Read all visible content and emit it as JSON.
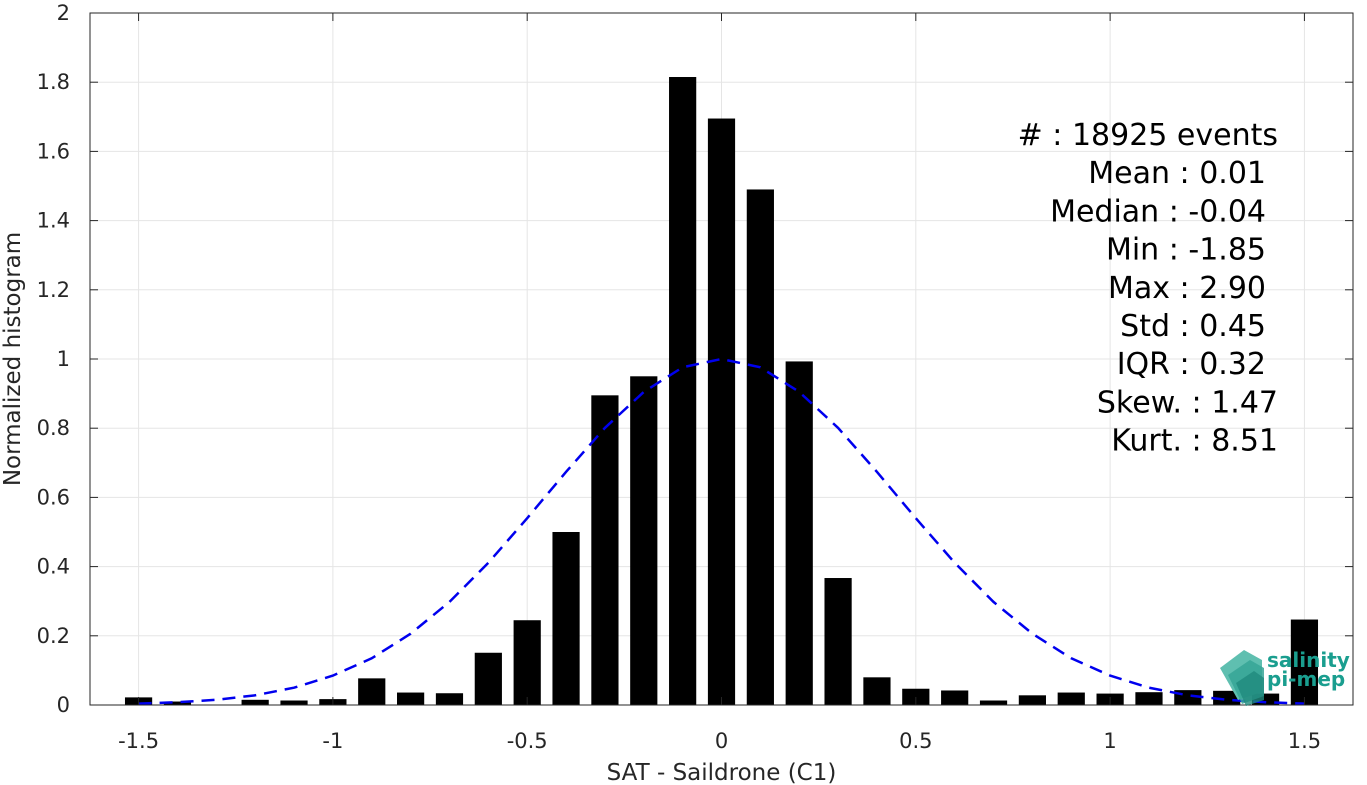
{
  "chart_data": {
    "type": "bar",
    "xlabel": "SAT - Saildrone (C1)",
    "ylabel": "Normalized histogram",
    "xlim": [
      -1.625,
      1.625
    ],
    "ylim": [
      0,
      2
    ],
    "xticks": [
      -1.5,
      -1,
      -0.5,
      0,
      0.5,
      1,
      1.5
    ],
    "xtick_labels": [
      "-1.5",
      "-1",
      "-0.5",
      "0",
      "0.5",
      "1",
      "1.5"
    ],
    "yticks": [
      0,
      0.2,
      0.4,
      0.6,
      0.8,
      1,
      1.2,
      1.4,
      1.6,
      1.8,
      2
    ],
    "ytick_labels": [
      "0",
      "0.2",
      "0.4",
      "0.6",
      "0.8",
      "1",
      "1.2",
      "1.4",
      "1.6",
      "1.8",
      "2"
    ],
    "grid": true,
    "bar_color": "#000000",
    "curve_color": "#0000ee",
    "series": [
      {
        "type": "bar",
        "x": [
          -1.5,
          -1.4,
          -1.3,
          -1.2,
          -1.1,
          -1.0,
          -0.9,
          -0.8,
          -0.7,
          -0.6,
          -0.5,
          -0.4,
          -0.3,
          -0.2,
          -0.1,
          0.0,
          0.1,
          0.2,
          0.3,
          0.4,
          0.5,
          0.6,
          0.7,
          0.8,
          0.9,
          1.0,
          1.1,
          1.2,
          1.3,
          1.4,
          1.5
        ],
        "values": [
          0.022,
          0.01,
          0.0,
          0.015,
          0.013,
          0.017,
          0.077,
          0.036,
          0.034,
          0.151,
          0.245,
          0.5,
          0.895,
          0.95,
          1.815,
          1.695,
          1.49,
          0.993,
          0.367,
          0.08,
          0.047,
          0.042,
          0.013,
          0.028,
          0.036,
          0.033,
          0.037,
          0.043,
          0.041,
          0.033,
          0.247
        ]
      },
      {
        "type": "line",
        "style": "dashed",
        "x": [
          -1.5,
          -1.4,
          -1.3,
          -1.2,
          -1.1,
          -1.0,
          -0.9,
          -0.8,
          -0.7,
          -0.6,
          -0.5,
          -0.4,
          -0.3,
          -0.2,
          -0.1,
          0.0,
          0.1,
          0.2,
          0.3,
          0.4,
          0.5,
          0.6,
          0.7,
          0.8,
          0.9,
          1.0,
          1.1,
          1.2,
          1.3,
          1.4,
          1.5
        ],
        "values": [
          0.004,
          0.008,
          0.015,
          0.028,
          0.05,
          0.085,
          0.135,
          0.206,
          0.298,
          0.411,
          0.54,
          0.674,
          0.801,
          0.905,
          0.976,
          1.0,
          0.976,
          0.905,
          0.801,
          0.674,
          0.54,
          0.411,
          0.298,
          0.206,
          0.135,
          0.085,
          0.05,
          0.028,
          0.015,
          0.008,
          0.004
        ]
      }
    ],
    "annotations": [
      "#  : 18925 events",
      "Mean : 0.01",
      "Median : -0.04",
      "Min : -1.85",
      "Max : 2.90",
      "Std : 0.45",
      "IQR : 0.32",
      "Skew. : 1.47",
      "Kurt. : 8.51"
    ],
    "logo": {
      "line1": "salinity",
      "line2": "pi-mep"
    }
  }
}
